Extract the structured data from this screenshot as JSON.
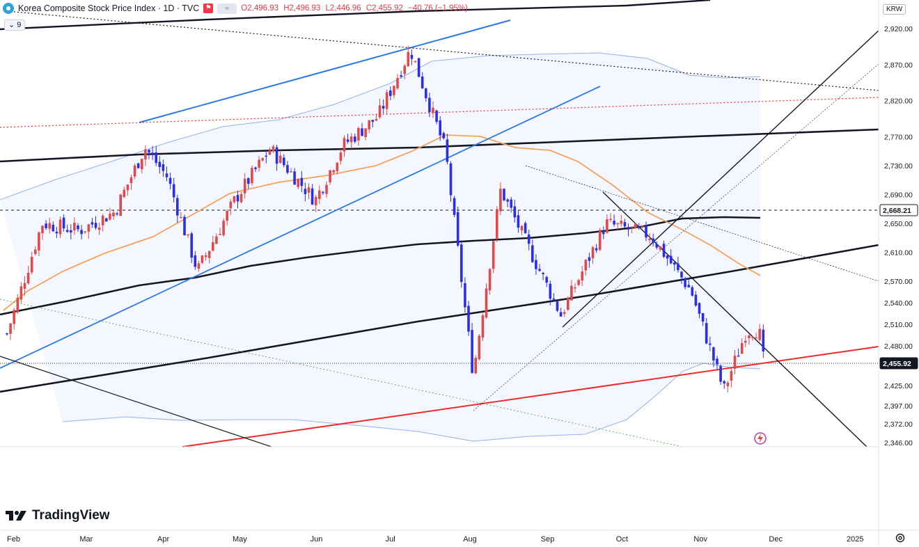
{
  "header": {
    "symbol_title": "Korea Composite Stock Price Index · 1D · TVC",
    "open": "O2,496.93",
    "high": "H2,496.93",
    "low": "L2,446.96",
    "close": "C2,455.92",
    "change": "−40.76 (−1.95%)",
    "indicator_count": "9",
    "currency": "KRW"
  },
  "branding": {
    "logo_text": "TradingView"
  },
  "colors": {
    "up": "#e04a4a",
    "down": "#2a2ee8",
    "ma_short": "#f4a259",
    "bollinger": "#8fb1f0",
    "red_trend": "#ee2a2a",
    "blue_channel": "#2979e8"
  },
  "chart_data": {
    "type": "candlestick",
    "title": "Korea Composite Stock Price Index · 1D · TVC",
    "ylim": [
      2346,
      2920
    ],
    "y_ticks": [
      2920,
      2870,
      2820,
      2770,
      2730,
      2690,
      2650,
      2610,
      2570,
      2540,
      2510,
      2480,
      2425,
      2397,
      2372,
      2346
    ],
    "y_tick_labels": [
      "2,920.00",
      "2,870.00",
      "2,820.00",
      "2,770.00",
      "2,730.00",
      "2,690.00",
      "2,650.00",
      "2,610.00",
      "2,570.00",
      "2,540.00",
      "2,510.00",
      "2,480.00",
      "2,425.00",
      "2,397.00",
      "2,372.00",
      "2,346.00"
    ],
    "x_range": [
      "2024-02-01",
      "2025-01-15"
    ],
    "x_tick_labels": [
      {
        "label": "Feb",
        "date": "2024-02-01"
      },
      {
        "label": "Mar",
        "date": "2024-03-01"
      },
      {
        "label": "Apr",
        "date": "2024-04-01"
      },
      {
        "label": "May",
        "date": "2024-05-01"
      },
      {
        "label": "Jun",
        "date": "2024-06-01"
      },
      {
        "label": "Jul",
        "date": "2024-07-01"
      },
      {
        "label": "Aug",
        "date": "2024-08-01"
      },
      {
        "label": "Sep",
        "date": "2024-09-01"
      },
      {
        "label": "Oct",
        "date": "2024-10-01"
      },
      {
        "label": "Nov",
        "date": "2024-11-01"
      },
      {
        "label": "Dec",
        "date": "2024-12-01"
      },
      {
        "label": "2025",
        "date": "2025-01-01"
      }
    ],
    "price_labels": [
      {
        "label": "2,668.21",
        "value": 2668.21,
        "style": "dashed"
      },
      {
        "label": "2,455.92",
        "value": 2455.92,
        "style": "current"
      }
    ],
    "closes": [
      {
        "date": "2024-02-01",
        "close": 2497
      },
      {
        "date": "2024-02-15",
        "close": 2650
      },
      {
        "date": "2024-03-01",
        "close": 2640
      },
      {
        "date": "2024-03-15",
        "close": 2666
      },
      {
        "date": "2024-03-27",
        "close": 2755
      },
      {
        "date": "2024-04-05",
        "close": 2714
      },
      {
        "date": "2024-04-17",
        "close": 2584
      },
      {
        "date": "2024-05-02",
        "close": 2683
      },
      {
        "date": "2024-05-16",
        "close": 2753
      },
      {
        "date": "2024-06-03",
        "close": 2682
      },
      {
        "date": "2024-06-14",
        "close": 2758
      },
      {
        "date": "2024-06-28",
        "close": 2798
      },
      {
        "date": "2024-07-11",
        "close": 2891
      },
      {
        "date": "2024-07-25",
        "close": 2750
      },
      {
        "date": "2024-08-05",
        "close": 2441
      },
      {
        "date": "2024-08-16",
        "close": 2697
      },
      {
        "date": "2024-09-09",
        "close": 2523
      },
      {
        "date": "2024-09-27",
        "close": 2650
      },
      {
        "date": "2024-10-15",
        "close": 2633
      },
      {
        "date": "2024-10-31",
        "close": 2556
      },
      {
        "date": "2024-11-13",
        "close": 2418
      },
      {
        "date": "2024-11-22",
        "close": 2501
      },
      {
        "date": "2024-11-27",
        "close": 2503
      },
      {
        "date": "2024-11-29",
        "close": 2456
      }
    ]
  }
}
